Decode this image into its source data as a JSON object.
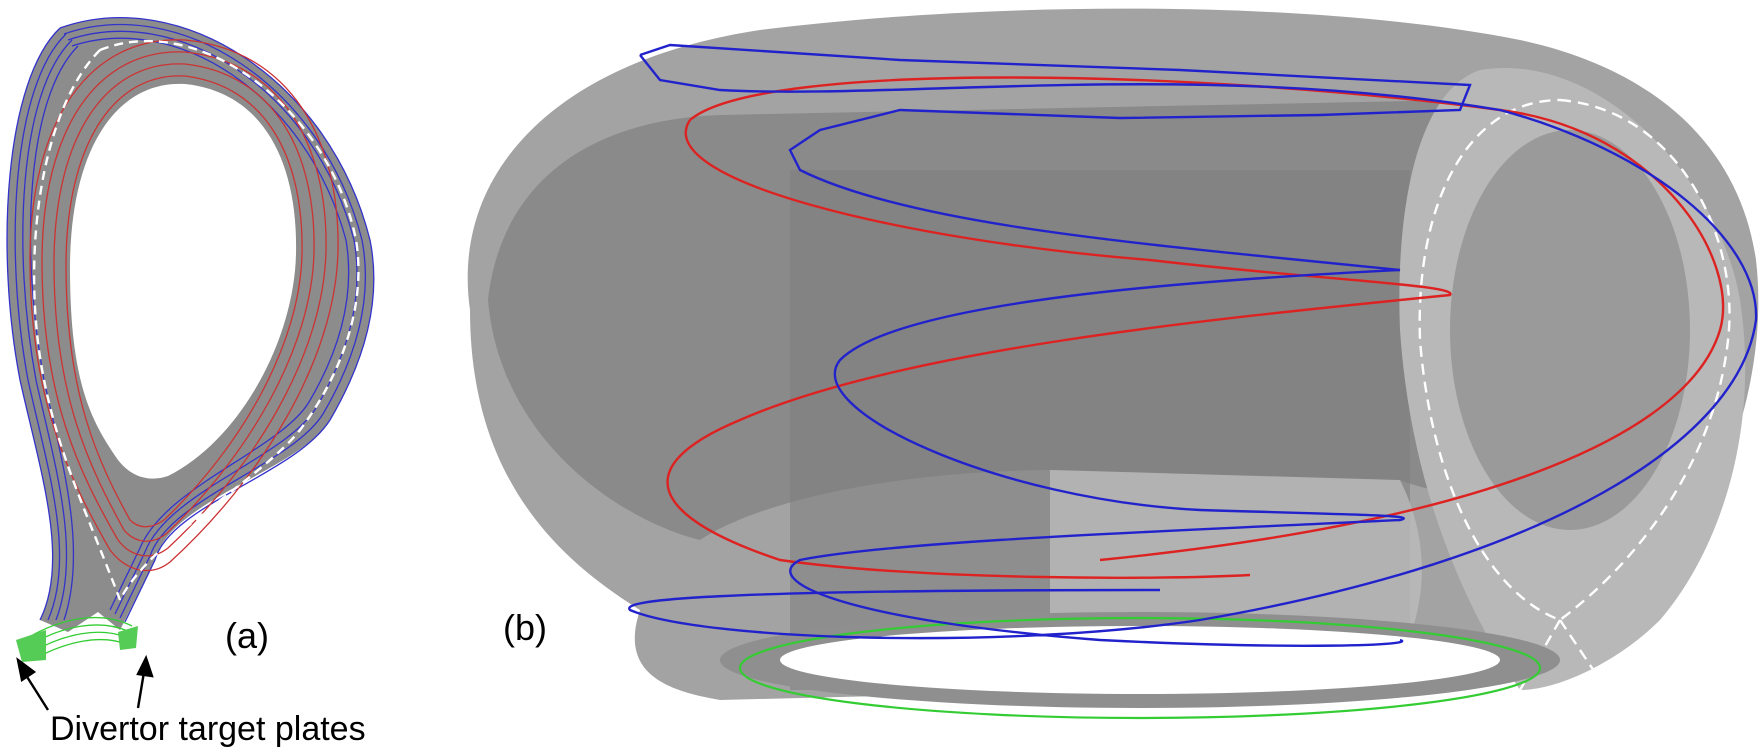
{
  "panel_a": {
    "label": "(a)",
    "annotation": "Divertor target plates"
  },
  "panel_b": {
    "label": "(b)"
  },
  "colors": {
    "background": "#ffffff",
    "plasma_shade": "#8c8c8c",
    "torus_light": "#b4b4b4",
    "torus_mid": "#999999",
    "torus_dark": "#7d7d7d",
    "closed_field_lines": "#cc3333",
    "open_field_lines": "#3333cc",
    "private_flux_lines": "#33cc33",
    "separatrix": "#ffffff",
    "arrow": "#000000"
  },
  "icons": [
    "arrow-icon"
  ]
}
